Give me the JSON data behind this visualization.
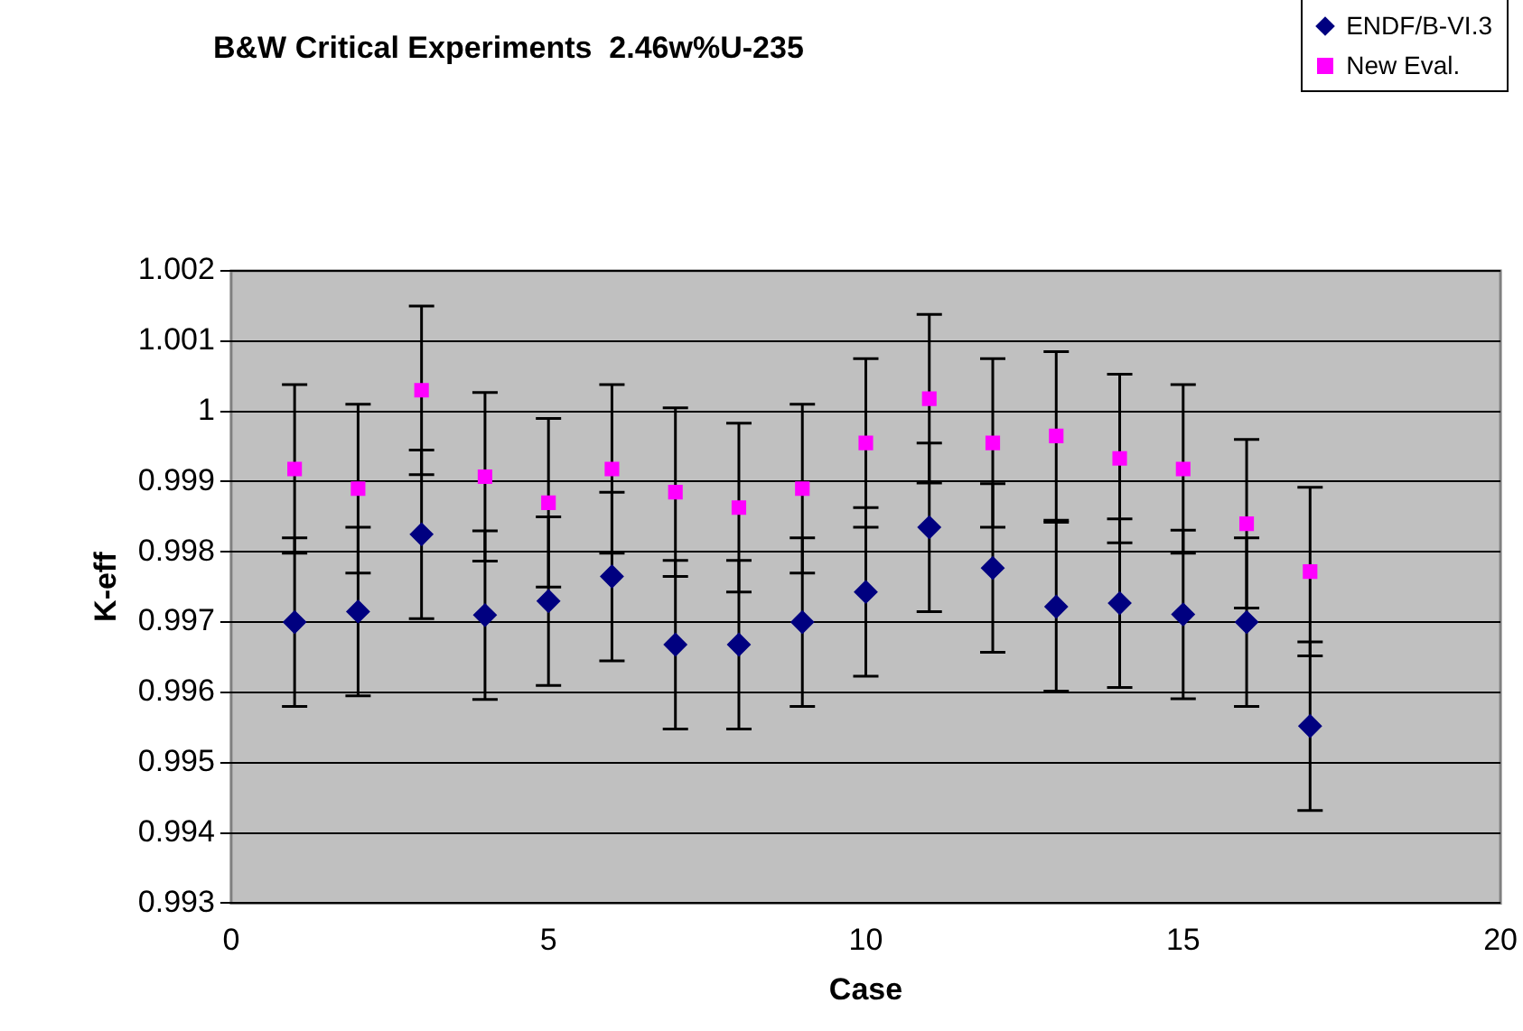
{
  "chart_data": {
    "type": "scatter",
    "title": "B&W Critical Experiments  2.46w%U-235",
    "xlabel": "Case",
    "ylabel": "K-eff",
    "x": [
      1,
      2,
      3,
      4,
      5,
      6,
      7,
      8,
      9,
      10,
      11,
      12,
      13,
      14,
      15,
      16,
      17
    ],
    "series": [
      {
        "name": "ENDF/B-VI.3",
        "color": "#000080",
        "marker": "diamond",
        "values": [
          0.997,
          0.99715,
          0.99825,
          0.9971,
          0.9973,
          0.99765,
          0.99668,
          0.99668,
          0.997,
          0.99743,
          0.99835,
          0.99777,
          0.99722,
          0.99727,
          0.99711,
          0.997,
          0.99552
        ],
        "errors": [
          0.0012,
          0.0012,
          0.0012,
          0.0012,
          0.0012,
          0.0012,
          0.0012,
          0.0012,
          0.0012,
          0.0012,
          0.0012,
          0.0012,
          0.0012,
          0.0012,
          0.0012,
          0.0012,
          0.0012
        ]
      },
      {
        "name": "New Eval.",
        "color": "#ff00ff",
        "marker": "square",
        "values": [
          0.99918,
          0.9989,
          1.0003,
          0.99907,
          0.9987,
          0.99918,
          0.99885,
          0.99863,
          0.9989,
          0.99955,
          1.00018,
          0.99955,
          0.99965,
          0.99933,
          0.99918,
          0.9984,
          0.99772
        ],
        "errors": [
          0.0012,
          0.0012,
          0.0012,
          0.0012,
          0.0012,
          0.0012,
          0.0012,
          0.0012,
          0.0012,
          0.0012,
          0.0012,
          0.0012,
          0.0012,
          0.0012,
          0.0012,
          0.0012,
          0.0012
        ]
      }
    ],
    "xlim": [
      0,
      20
    ],
    "xticks": [
      0,
      5,
      10,
      15,
      20
    ],
    "ylim": [
      0.993,
      1.002
    ],
    "yticks": [
      0.993,
      0.994,
      0.995,
      0.996,
      0.997,
      0.998,
      0.999,
      1,
      1.001,
      1.002
    ],
    "grid": "y",
    "legend": "top right"
  }
}
